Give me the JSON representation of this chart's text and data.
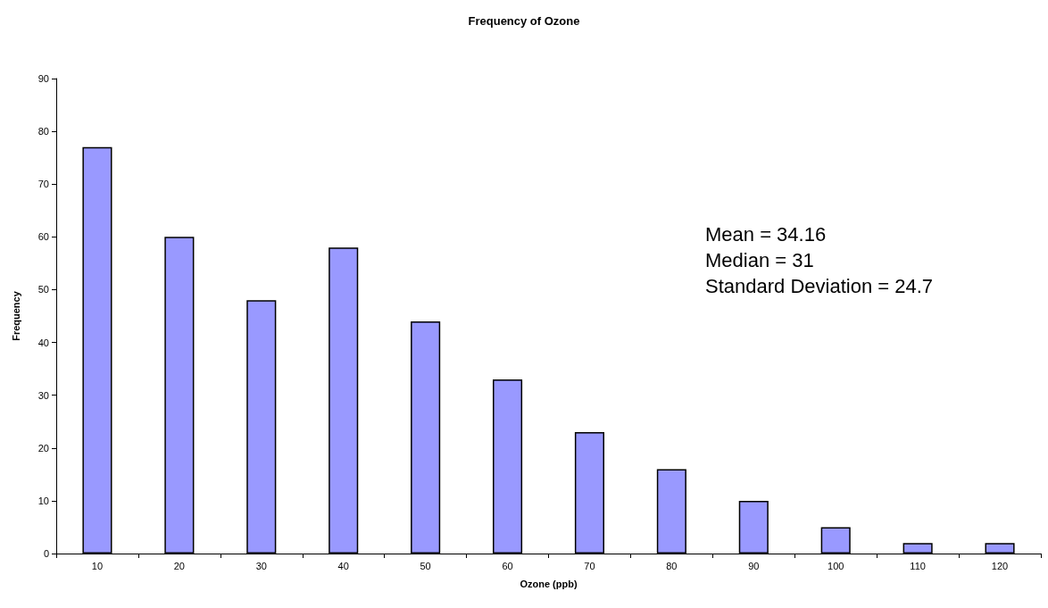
{
  "chart_data": {
    "type": "bar",
    "title": "Frequency of Ozone",
    "xlabel": "Ozone (ppb)",
    "ylabel": "Frequency",
    "categories": [
      "10",
      "20",
      "30",
      "40",
      "50",
      "60",
      "70",
      "80",
      "90",
      "100",
      "110",
      "120"
    ],
    "values": [
      77,
      60,
      48,
      58,
      44,
      33,
      23,
      16,
      10,
      5,
      2,
      2
    ],
    "color": "#9999ff",
    "ylim": [
      0,
      90
    ],
    "yticks": [
      0,
      10,
      20,
      30,
      40,
      50,
      60,
      70,
      80,
      90
    ],
    "grid": false,
    "annotations": [
      "Mean = 34.16",
      "Median = 31",
      "Standard Deviation = 24.7"
    ]
  }
}
